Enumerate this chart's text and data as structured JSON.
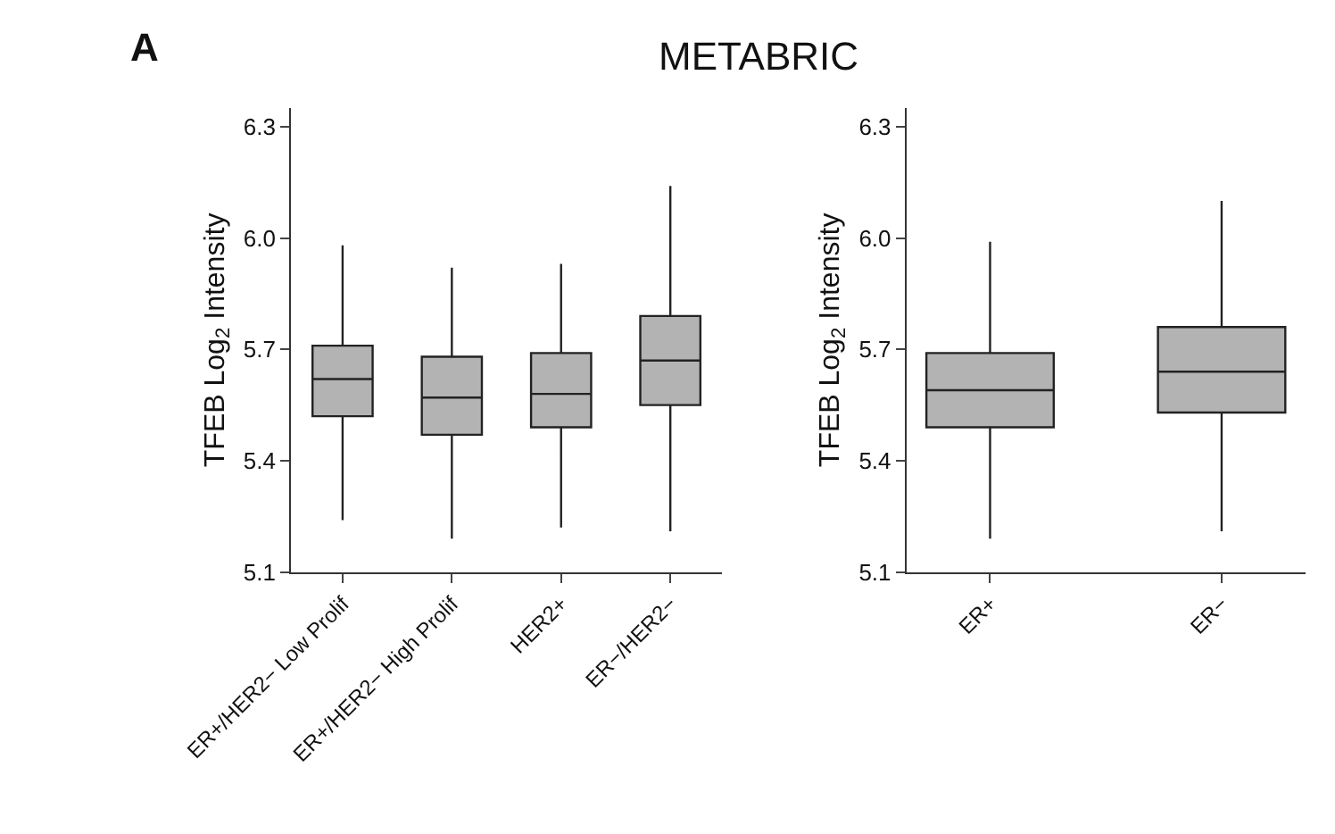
{
  "chart_data": [
    {
      "type": "box",
      "title": "METABRIC",
      "annotations": [
        "A"
      ],
      "ylabel": "TFEB Log$_{2}$ Intensity",
      "categories": [
        "ER+/HER2− Low Prolif",
        "ER+/HER2− High Prolif",
        "HER2+",
        "ER−/HER2−"
      ],
      "color": "#b3b3b3",
      "ylim": [
        5.1,
        6.35
      ],
      "yticks": [
        5.1,
        5.4,
        5.7,
        {
          "value": 6.0,
          "label": "6.0"
        },
        6.3
      ],
      "boxes": [
        {
          "low": 5.24,
          "q1": 5.52,
          "median": 5.62,
          "q3": 5.71,
          "high": 5.98
        },
        {
          "low": 5.19,
          "q1": 5.47,
          "median": 5.57,
          "q3": 5.68,
          "high": 5.92
        },
        {
          "low": 5.22,
          "q1": 5.49,
          "median": 5.58,
          "q3": 5.69,
          "high": 5.93
        },
        {
          "low": 5.21,
          "q1": 5.55,
          "median": 5.67,
          "q3": 5.79,
          "high": 6.14
        }
      ]
    },
    {
      "type": "box",
      "ylabel": "TFEB Log$_{2}$ Intensity",
      "categories": [
        "ER+",
        "ER−"
      ],
      "color": "#b3b3b3",
      "ylim": [
        5.1,
        6.35
      ],
      "yticks": [
        5.1,
        5.4,
        5.7,
        {
          "value": 6.0,
          "label": "6.0"
        },
        6.3
      ],
      "boxes": [
        {
          "low": 5.19,
          "q1": 5.49,
          "median": 5.59,
          "q3": 5.69,
          "high": 5.99
        },
        {
          "low": 5.21,
          "q1": 5.53,
          "median": 5.64,
          "q3": 5.76,
          "high": 6.1
        }
      ]
    }
  ]
}
